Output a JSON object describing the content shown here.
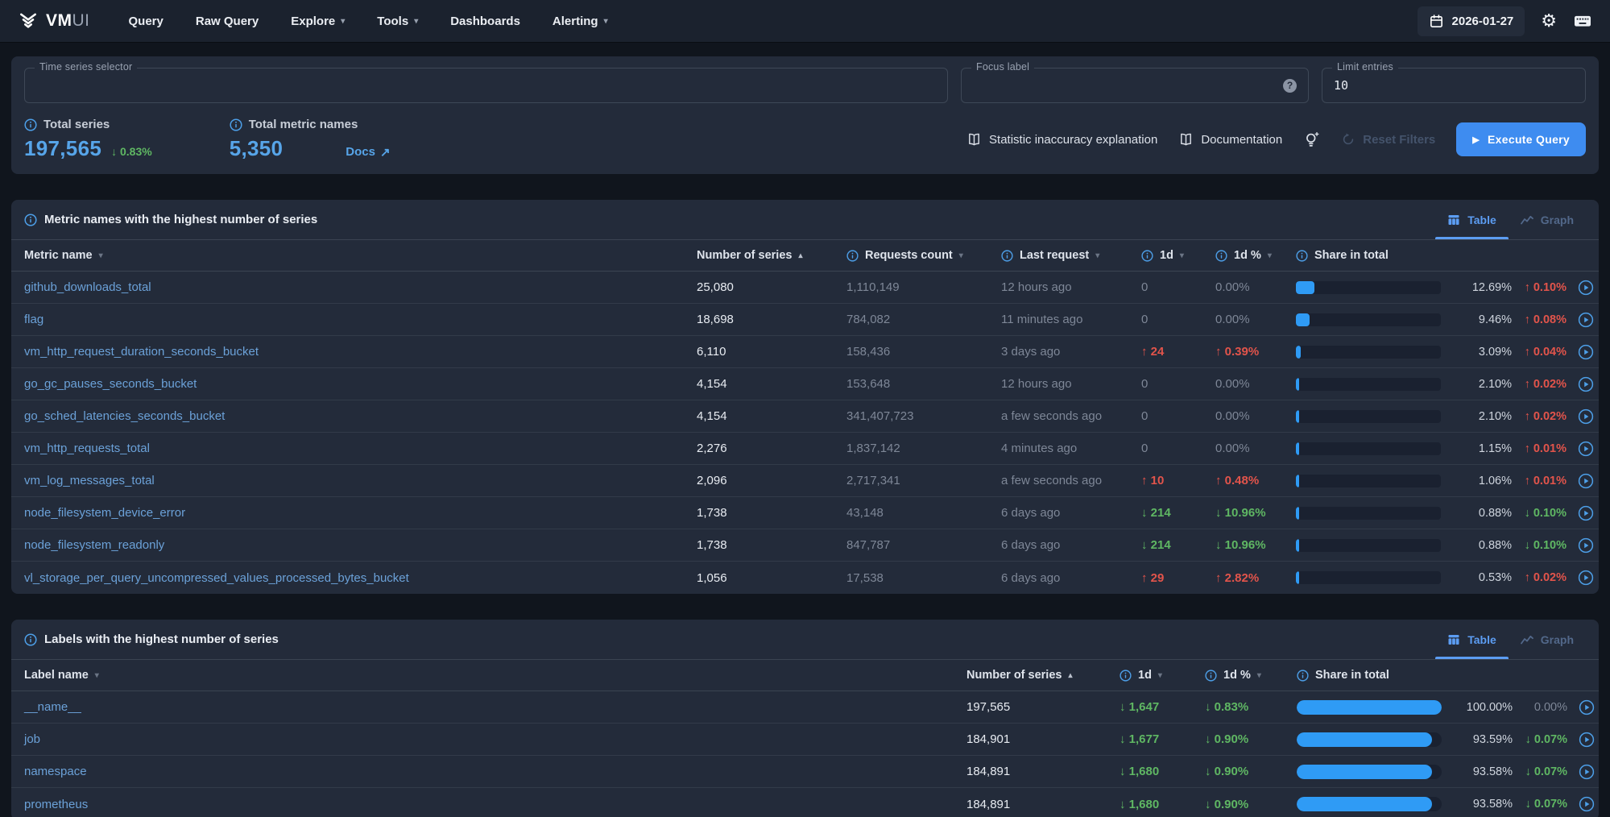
{
  "icons": {
    "dropdown": "▾",
    "sort_desc": "▾",
    "sort_asc": "▴",
    "gear": "⚙",
    "help": "?",
    "play": "▶",
    "external_link": "↗"
  },
  "colors": {
    "accent": "#3e8cf0",
    "bar_fill": "#2f9bf5",
    "red": "#e2544b",
    "green": "#5fb763"
  },
  "nav": {
    "brand_bold": "VM",
    "brand_light": "UI",
    "items": [
      {
        "label": "Query"
      },
      {
        "label": "Raw Query"
      },
      {
        "label": "Explore"
      },
      {
        "label": "Tools"
      },
      {
        "label": "Dashboards"
      },
      {
        "label": "Alerting"
      }
    ],
    "date": "2026-01-27"
  },
  "filters": {
    "series_selector_label": "Time series selector",
    "focus_label": "Focus label",
    "limit_label": "Limit entries",
    "limit_value": "10"
  },
  "stats": {
    "total_series": {
      "label": "Total series",
      "value": "197,565",
      "change": "↓ 0.83%"
    },
    "total_metric_names": {
      "label": "Total metric names",
      "value": "5,350",
      "docs": "Docs"
    }
  },
  "actions": {
    "inaccuracy": "Statistic inaccuracy explanation",
    "documentation": "Documentation",
    "reset": "Reset Filters",
    "execute": "Execute Query"
  },
  "tabs": {
    "table": "Table",
    "graph": "Graph"
  },
  "metrics_table": {
    "title": "Metric names with the highest number of series",
    "columns": {
      "name": "Metric name",
      "series": "Number of series",
      "requests": "Requests count",
      "last": "Last request",
      "d1": "1d",
      "d1p": "1d %",
      "share": "Share in total"
    },
    "rows": [
      {
        "name": "github_downloads_total",
        "series": "25,080",
        "requests": "1,110,149",
        "last": "12 hours ago",
        "d1": "0",
        "d1_t": "flat",
        "d1p": "0.00%",
        "d1p_t": "flat",
        "share_pct": 12.69,
        "share": "12.69%",
        "change": "↑ 0.10%",
        "change_t": "up"
      },
      {
        "name": "flag",
        "series": "18,698",
        "requests": "784,082",
        "last": "11 minutes ago",
        "d1": "0",
        "d1_t": "flat",
        "d1p": "0.00%",
        "d1p_t": "flat",
        "share_pct": 9.46,
        "share": "9.46%",
        "change": "↑ 0.08%",
        "change_t": "up"
      },
      {
        "name": "vm_http_request_duration_seconds_bucket",
        "series": "6,110",
        "requests": "158,436",
        "last": "3 days ago",
        "d1": "↑ 24",
        "d1_t": "up",
        "d1p": "↑ 0.39%",
        "d1p_t": "up",
        "share_pct": 3.09,
        "share": "3.09%",
        "change": "↑ 0.04%",
        "change_t": "up"
      },
      {
        "name": "go_gc_pauses_seconds_bucket",
        "series": "4,154",
        "requests": "153,648",
        "last": "12 hours ago",
        "d1": "0",
        "d1_t": "flat",
        "d1p": "0.00%",
        "d1p_t": "flat",
        "share_pct": 2.1,
        "share": "2.10%",
        "change": "↑ 0.02%",
        "change_t": "up"
      },
      {
        "name": "go_sched_latencies_seconds_bucket",
        "series": "4,154",
        "requests": "341,407,723",
        "last": "a few seconds ago",
        "d1": "0",
        "d1_t": "flat",
        "d1p": "0.00%",
        "d1p_t": "flat",
        "share_pct": 2.1,
        "share": "2.10%",
        "change": "↑ 0.02%",
        "change_t": "up"
      },
      {
        "name": "vm_http_requests_total",
        "series": "2,276",
        "requests": "1,837,142",
        "last": "4 minutes ago",
        "d1": "0",
        "d1_t": "flat",
        "d1p": "0.00%",
        "d1p_t": "flat",
        "share_pct": 1.15,
        "share": "1.15%",
        "change": "↑ 0.01%",
        "change_t": "up"
      },
      {
        "name": "vm_log_messages_total",
        "series": "2,096",
        "requests": "2,717,341",
        "last": "a few seconds ago",
        "d1": "↑ 10",
        "d1_t": "up",
        "d1p": "↑ 0.48%",
        "d1p_t": "up",
        "share_pct": 1.06,
        "share": "1.06%",
        "change": "↑ 0.01%",
        "change_t": "up"
      },
      {
        "name": "node_filesystem_device_error",
        "series": "1,738",
        "requests": "43,148",
        "last": "6 days ago",
        "d1": "↓ 214",
        "d1_t": "down",
        "d1p": "↓ 10.96%",
        "d1p_t": "down",
        "share_pct": 0.88,
        "share": "0.88%",
        "change": "↓ 0.10%",
        "change_t": "down"
      },
      {
        "name": "node_filesystem_readonly",
        "series": "1,738",
        "requests": "847,787",
        "last": "6 days ago",
        "d1": "↓ 214",
        "d1_t": "down",
        "d1p": "↓ 10.96%",
        "d1p_t": "down",
        "share_pct": 0.88,
        "share": "0.88%",
        "change": "↓ 0.10%",
        "change_t": "down"
      },
      {
        "name": "vl_storage_per_query_uncompressed_values_processed_bytes_bucket",
        "series": "1,056",
        "requests": "17,538",
        "last": "6 days ago",
        "d1": "↑ 29",
        "d1_t": "up",
        "d1p": "↑ 2.82%",
        "d1p_t": "up",
        "share_pct": 0.53,
        "share": "0.53%",
        "change": "↑ 0.02%",
        "change_t": "up"
      }
    ]
  },
  "labels_table": {
    "title": "Labels with the highest number of series",
    "columns": {
      "name": "Label name",
      "series": "Number of series",
      "d1": "1d",
      "d1p": "1d %",
      "share": "Share in total"
    },
    "rows": [
      {
        "name": "__name__",
        "series": "197,565",
        "d1": "↓ 1,647",
        "d1_t": "down",
        "d1p": "↓ 0.83%",
        "d1p_t": "down",
        "share_pct": 100,
        "share": "100.00%",
        "change": "0.00%",
        "change_t": "flat"
      },
      {
        "name": "job",
        "series": "184,901",
        "d1": "↓ 1,677",
        "d1_t": "down",
        "d1p": "↓ 0.90%",
        "d1p_t": "down",
        "share_pct": 93.59,
        "share": "93.59%",
        "change": "↓ 0.07%",
        "change_t": "down"
      },
      {
        "name": "namespace",
        "series": "184,891",
        "d1": "↓ 1,680",
        "d1_t": "down",
        "d1p": "↓ 0.90%",
        "d1p_t": "down",
        "share_pct": 93.58,
        "share": "93.58%",
        "change": "↓ 0.07%",
        "change_t": "down"
      },
      {
        "name": "prometheus",
        "series": "184,891",
        "d1": "↓ 1,680",
        "d1_t": "down",
        "d1p": "↓ 0.90%",
        "d1p_t": "down",
        "share_pct": 93.58,
        "share": "93.58%",
        "change": "↓ 0.07%",
        "change_t": "down"
      }
    ]
  }
}
